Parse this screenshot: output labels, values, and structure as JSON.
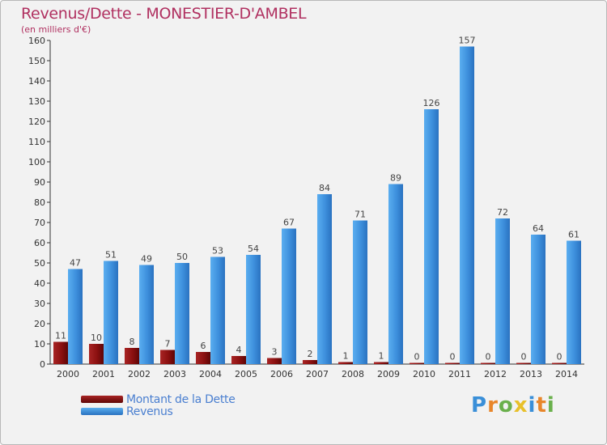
{
  "chart_data": {
    "type": "bar",
    "title": "Revenus/Dette - MONESTIER-D'AMBEL",
    "subtitle": "(en milliers d'€)",
    "categories": [
      "2000",
      "2001",
      "2002",
      "2003",
      "2004",
      "2005",
      "2006",
      "2007",
      "2008",
      "2009",
      "2010",
      "2011",
      "2012",
      "2013",
      "2014"
    ],
    "series": [
      {
        "name": "Montant de la Dette",
        "color": "#8b1010",
        "values": [
          11,
          10,
          8,
          7,
          6,
          4,
          3,
          2,
          1,
          1,
          0,
          0,
          0,
          0,
          0
        ]
      },
      {
        "name": "Revenus",
        "color": "#3d8fdc",
        "values": [
          47,
          51,
          49,
          50,
          53,
          54,
          67,
          84,
          71,
          89,
          126,
          157,
          72,
          64,
          61
        ]
      }
    ],
    "ylim": [
      0,
      160
    ],
    "yticks": [
      0,
      10,
      20,
      30,
      40,
      50,
      60,
      70,
      80,
      90,
      100,
      110,
      120,
      130,
      140,
      150,
      160
    ],
    "xlabel": "",
    "ylabel": "",
    "grid": false,
    "legend": "bottom-left"
  },
  "logo": {
    "text": "Proxiti"
  }
}
